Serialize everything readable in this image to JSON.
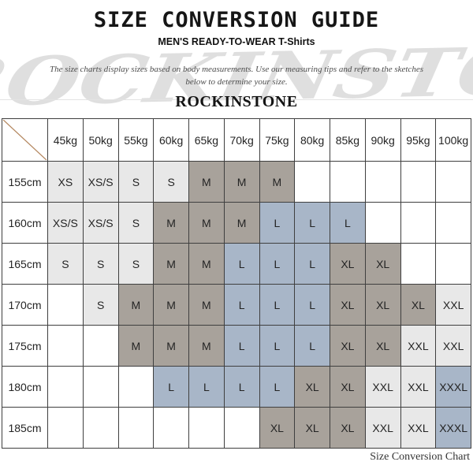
{
  "page": {
    "title": "SIZE CONVERSION GUIDE",
    "subtitle": "MEN'S READY-TO-WEAR T-Shirts",
    "description": [
      "The size charts display sizes based on body measurements. Use our measuring tips and refer to the sketches",
      "below to determine your size."
    ],
    "brand": "ROCKINSTONE",
    "watermark": "ROCKINSTONE",
    "caption": "Size Conversion Chart"
  },
  "colors": {
    "fill_light": "#e8e8e8",
    "fill_dark": "#a8a29b",
    "fill_blue": "#a8b6c8",
    "diagonal_line": "#b4875f",
    "grid_border": "#3f3f3f"
  },
  "chart_data": {
    "type": "table",
    "corner_label": "",
    "columns": [
      "45kg",
      "50kg",
      "55kg",
      "60kg",
      "65kg",
      "70kg",
      "75kg",
      "80kg",
      "85kg",
      "90kg",
      "95kg",
      "100kg"
    ],
    "rows": [
      {
        "label": "155cm",
        "cells": [
          {
            "size": "XS",
            "fill": "light"
          },
          {
            "size": "XS/S",
            "fill": "light"
          },
          {
            "size": "S",
            "fill": "light"
          },
          {
            "size": "S",
            "fill": "light"
          },
          {
            "size": "M",
            "fill": "dark"
          },
          {
            "size": "M",
            "fill": "dark"
          },
          {
            "size": "M",
            "fill": "dark"
          },
          {
            "size": "",
            "fill": "none"
          },
          {
            "size": "",
            "fill": "none"
          },
          {
            "size": "",
            "fill": "none"
          },
          {
            "size": "",
            "fill": "none"
          },
          {
            "size": "",
            "fill": "none"
          }
        ]
      },
      {
        "label": "160cm",
        "cells": [
          {
            "size": "XS/S",
            "fill": "light"
          },
          {
            "size": "XS/S",
            "fill": "light"
          },
          {
            "size": "S",
            "fill": "light"
          },
          {
            "size": "M",
            "fill": "dark"
          },
          {
            "size": "M",
            "fill": "dark"
          },
          {
            "size": "M",
            "fill": "dark"
          },
          {
            "size": "L",
            "fill": "blue"
          },
          {
            "size": "L",
            "fill": "blue"
          },
          {
            "size": "L",
            "fill": "blue"
          },
          {
            "size": "",
            "fill": "none"
          },
          {
            "size": "",
            "fill": "none"
          },
          {
            "size": "",
            "fill": "none"
          }
        ]
      },
      {
        "label": "165cm",
        "cells": [
          {
            "size": "S",
            "fill": "light"
          },
          {
            "size": "S",
            "fill": "light"
          },
          {
            "size": "S",
            "fill": "light"
          },
          {
            "size": "M",
            "fill": "dark"
          },
          {
            "size": "M",
            "fill": "dark"
          },
          {
            "size": "L",
            "fill": "blue"
          },
          {
            "size": "L",
            "fill": "blue"
          },
          {
            "size": "L",
            "fill": "blue"
          },
          {
            "size": "XL",
            "fill": "dark"
          },
          {
            "size": "XL",
            "fill": "dark"
          },
          {
            "size": "",
            "fill": "none"
          },
          {
            "size": "",
            "fill": "none"
          }
        ]
      },
      {
        "label": "170cm",
        "cells": [
          {
            "size": "",
            "fill": "none"
          },
          {
            "size": "S",
            "fill": "light"
          },
          {
            "size": "M",
            "fill": "dark"
          },
          {
            "size": "M",
            "fill": "dark"
          },
          {
            "size": "M",
            "fill": "dark"
          },
          {
            "size": "L",
            "fill": "blue"
          },
          {
            "size": "L",
            "fill": "blue"
          },
          {
            "size": "L",
            "fill": "blue"
          },
          {
            "size": "XL",
            "fill": "dark"
          },
          {
            "size": "XL",
            "fill": "dark"
          },
          {
            "size": "XL",
            "fill": "dark"
          },
          {
            "size": "XXL",
            "fill": "light"
          }
        ]
      },
      {
        "label": "175cm",
        "cells": [
          {
            "size": "",
            "fill": "none"
          },
          {
            "size": "",
            "fill": "none"
          },
          {
            "size": "M",
            "fill": "dark"
          },
          {
            "size": "M",
            "fill": "dark"
          },
          {
            "size": "M",
            "fill": "dark"
          },
          {
            "size": "L",
            "fill": "blue"
          },
          {
            "size": "L",
            "fill": "blue"
          },
          {
            "size": "L",
            "fill": "blue"
          },
          {
            "size": "XL",
            "fill": "dark"
          },
          {
            "size": "XL",
            "fill": "dark"
          },
          {
            "size": "XXL",
            "fill": "light"
          },
          {
            "size": "XXL",
            "fill": "light"
          }
        ]
      },
      {
        "label": "180cm",
        "cells": [
          {
            "size": "",
            "fill": "none"
          },
          {
            "size": "",
            "fill": "none"
          },
          {
            "size": "",
            "fill": "none"
          },
          {
            "size": "L",
            "fill": "blue"
          },
          {
            "size": "L",
            "fill": "blue"
          },
          {
            "size": "L",
            "fill": "blue"
          },
          {
            "size": "L",
            "fill": "blue"
          },
          {
            "size": "XL",
            "fill": "dark"
          },
          {
            "size": "XL",
            "fill": "dark"
          },
          {
            "size": "XXL",
            "fill": "light"
          },
          {
            "size": "XXL",
            "fill": "light"
          },
          {
            "size": "XXXL",
            "fill": "blue"
          }
        ]
      },
      {
        "label": "185cm",
        "cells": [
          {
            "size": "",
            "fill": "none"
          },
          {
            "size": "",
            "fill": "none"
          },
          {
            "size": "",
            "fill": "none"
          },
          {
            "size": "",
            "fill": "none"
          },
          {
            "size": "",
            "fill": "none"
          },
          {
            "size": "",
            "fill": "none"
          },
          {
            "size": "XL",
            "fill": "dark"
          },
          {
            "size": "XL",
            "fill": "dark"
          },
          {
            "size": "XL",
            "fill": "dark"
          },
          {
            "size": "XXL",
            "fill": "light"
          },
          {
            "size": "XXL",
            "fill": "light"
          },
          {
            "size": "XXXL",
            "fill": "blue"
          }
        ]
      }
    ]
  }
}
